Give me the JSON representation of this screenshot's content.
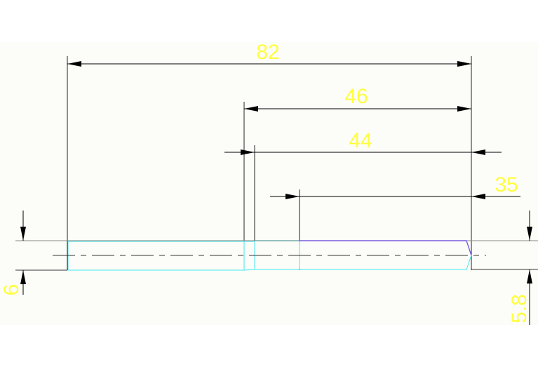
{
  "drawing": {
    "dimensions": [
      {
        "label": "82",
        "orientation": "horizontal"
      },
      {
        "label": "46",
        "orientation": "horizontal"
      },
      {
        "label": "44",
        "orientation": "horizontal"
      },
      {
        "label": "35",
        "orientation": "horizontal"
      },
      {
        "label": "6",
        "orientation": "vertical"
      },
      {
        "label": "5.8",
        "orientation": "vertical"
      }
    ],
    "colors": {
      "dimension_text": "#ffff40",
      "dimension_lines": "#000000",
      "part_outline": "#40e8f0",
      "part_highlight": "#7a5ce0",
      "centerline": "#333333"
    }
  }
}
